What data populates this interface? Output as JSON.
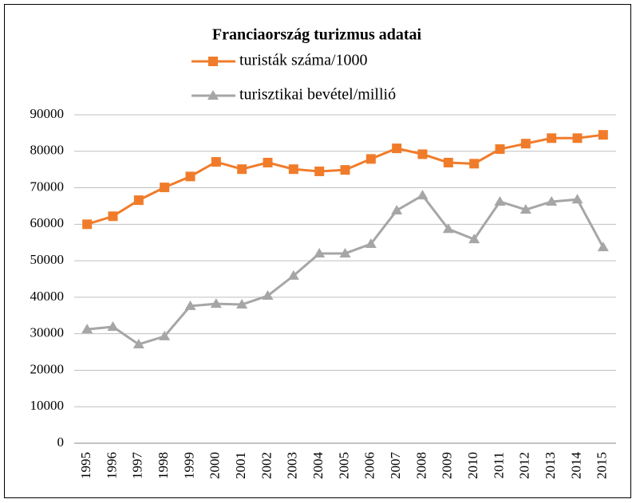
{
  "chart_data": {
    "type": "line",
    "title": "Franciaország turizmus adatai",
    "categories": [
      "1995",
      "1996",
      "1997",
      "1998",
      "1999",
      "2000",
      "2001",
      "2002",
      "2003",
      "2004",
      "2005",
      "2006",
      "2007",
      "2008",
      "2009",
      "2010",
      "2011",
      "2012",
      "2013",
      "2014",
      "2015"
    ],
    "series": [
      {
        "name": "turisták száma/1000",
        "color": "#f07c2b",
        "marker": "square",
        "values": [
          60000,
          62200,
          66600,
          70100,
          73100,
          77100,
          75100,
          76900,
          75100,
          74500,
          74900,
          77900,
          80800,
          79200,
          76900,
          76600,
          80600,
          82100,
          83600,
          83600,
          84500
        ]
      },
      {
        "name": "turisztikai bevétel/millió",
        "color": "#a6a6a6",
        "marker": "triangle",
        "values": [
          31200,
          31900,
          27100,
          29300,
          37600,
          38200,
          38000,
          40400,
          45900,
          52000,
          52000,
          54600,
          63800,
          67900,
          58700,
          55900,
          66200,
          64000,
          66200,
          66800,
          53700
        ]
      }
    ],
    "ylim": [
      0,
      90000
    ],
    "yticks": [
      0,
      10000,
      20000,
      30000,
      40000,
      50000,
      60000,
      70000,
      80000,
      90000
    ],
    "grid": true
  }
}
